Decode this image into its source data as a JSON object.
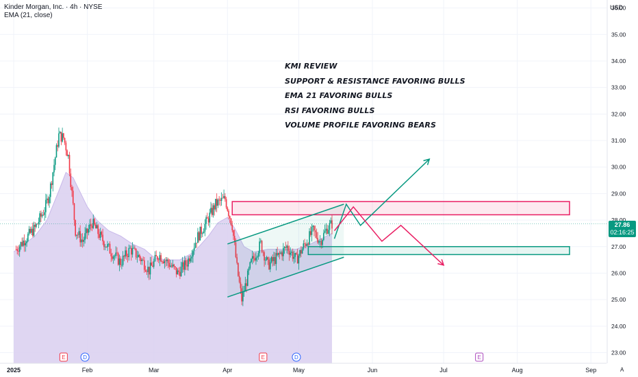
{
  "header": {
    "symbol": "Kinder Morgan, Inc. · 4h · NYSE",
    "indicator": "EMA (21, close)"
  },
  "currency": "USD",
  "last_price": "27.86",
  "countdown": "02:16:25",
  "corner_label": "A",
  "annotations": [
    "KMI REVIEW",
    "SUPPORT & RESISTANCE FAVORING BULLS",
    "EMA 21 FAVORING BULLS",
    "RSI FAVORING BULLS",
    "VOLUME PROFILE FAVORING BEARS"
  ],
  "colors": {
    "up": "#089981",
    "down": "#f23645",
    "ema_fill": "#d9cff0",
    "resistance": "#e91e63",
    "support": "#089981",
    "grid": "#f0f3fa"
  },
  "chart_data": {
    "type": "candlestick",
    "ylim": [
      22.6,
      36.3
    ],
    "yticks": [
      "23.00",
      "24.00",
      "25.00",
      "26.00",
      "27.00",
      "28.00",
      "29.00",
      "30.00",
      "31.00",
      "32.00",
      "33.00",
      "34.00",
      "35.00",
      "36.00"
    ],
    "x_ticks": [
      "2025",
      "Feb",
      "Mar",
      "Apr",
      "May",
      "Jun",
      "Jul",
      "Aug",
      "Sep"
    ],
    "events": [
      {
        "label": "E",
        "date": "Jan 22",
        "type": "earnings"
      },
      {
        "label": "D",
        "date": "Jan 31",
        "type": "dividend"
      },
      {
        "label": "E",
        "date": "Apr 16",
        "type": "earnings"
      },
      {
        "label": "D",
        "date": "Apr 30",
        "type": "dividend"
      },
      {
        "label": "E",
        "date": "Jul 16",
        "type": "earnings"
      }
    ],
    "price_path": [
      {
        "date": "Jan 2",
        "price": 26.9
      },
      {
        "date": "Jan 6",
        "price": 27.3
      },
      {
        "date": "Jan 10",
        "price": 27.7
      },
      {
        "date": "Jan 14",
        "price": 28.4
      },
      {
        "date": "Jan 16",
        "price": 29.0
      },
      {
        "date": "Jan 18",
        "price": 30.1
      },
      {
        "date": "Jan 20",
        "price": 31.2
      },
      {
        "date": "Jan 22",
        "price": 31.1
      },
      {
        "date": "Jan 24",
        "price": 30.4
      },
      {
        "date": "Jan 27",
        "price": 27.6
      },
      {
        "date": "Jan 30",
        "price": 27.2
      },
      {
        "date": "Feb 3",
        "price": 27.9
      },
      {
        "date": "Feb 7",
        "price": 27.3
      },
      {
        "date": "Feb 11",
        "price": 26.8
      },
      {
        "date": "Feb 15",
        "price": 26.4
      },
      {
        "date": "Feb 19",
        "price": 26.9
      },
      {
        "date": "Feb 23",
        "price": 26.6
      },
      {
        "date": "Feb 27",
        "price": 26.1
      },
      {
        "date": "Mar 3",
        "price": 26.7
      },
      {
        "date": "Mar 7",
        "price": 26.4
      },
      {
        "date": "Mar 11",
        "price": 26.0
      },
      {
        "date": "Mar 15",
        "price": 26.4
      },
      {
        "date": "Mar 19",
        "price": 27.3
      },
      {
        "date": "Mar 23",
        "price": 27.9
      },
      {
        "date": "Mar 27",
        "price": 28.6
      },
      {
        "date": "Mar 31",
        "price": 28.8
      },
      {
        "date": "Apr 3",
        "price": 27.8
      },
      {
        "date": "Apr 5",
        "price": 26.2
      },
      {
        "date": "Apr 7",
        "price": 25.0
      },
      {
        "date": "Apr 9",
        "price": 25.7
      },
      {
        "date": "Apr 11",
        "price": 26.4
      },
      {
        "date": "Apr 15",
        "price": 27.1
      },
      {
        "date": "Apr 18",
        "price": 26.3
      },
      {
        "date": "Apr 22",
        "price": 26.6
      },
      {
        "date": "Apr 26",
        "price": 27.0
      },
      {
        "date": "Apr 30",
        "price": 26.5
      },
      {
        "date": "May 3",
        "price": 27.0
      },
      {
        "date": "May 7",
        "price": 27.6
      },
      {
        "date": "May 10",
        "price": 27.2
      },
      {
        "date": "May 13",
        "price": 27.7
      },
      {
        "date": "May 15",
        "price": 27.86
      }
    ],
    "ema_21": [
      {
        "date": "Jan 1",
        "price": 26.8
      },
      {
        "date": "Jan 10",
        "price": 27.4
      },
      {
        "date": "Jan 15",
        "price": 28.0
      },
      {
        "date": "Jan 20",
        "price": 29.1
      },
      {
        "date": "Jan 23",
        "price": 29.8
      },
      {
        "date": "Jan 26",
        "price": 29.6
      },
      {
        "date": "Feb 1",
        "price": 28.5
      },
      {
        "date": "Feb 5",
        "price": 28.0
      },
      {
        "date": "Feb 10",
        "price": 27.6
      },
      {
        "date": "Feb 15",
        "price": 27.4
      },
      {
        "date": "Feb 20",
        "price": 27.1
      },
      {
        "date": "Feb 25",
        "price": 26.9
      },
      {
        "date": "Mar 1",
        "price": 26.6
      },
      {
        "date": "Mar 6",
        "price": 26.5
      },
      {
        "date": "Mar 12",
        "price": 26.5
      },
      {
        "date": "Mar 18",
        "price": 26.8
      },
      {
        "date": "Mar 24",
        "price": 27.4
      },
      {
        "date": "Mar 28",
        "price": 27.9
      },
      {
        "date": "Apr 1",
        "price": 28.1
      },
      {
        "date": "Apr 4",
        "price": 27.7
      },
      {
        "date": "Apr 8",
        "price": 27.0
      },
      {
        "date": "Apr 12",
        "price": 26.8
      },
      {
        "date": "Apr 18",
        "price": 26.9
      },
      {
        "date": "Apr 24",
        "price": 26.9
      },
      {
        "date": "Apr 30",
        "price": 26.9
      },
      {
        "date": "May 6",
        "price": 27.1
      },
      {
        "date": "May 15",
        "price": 27.5
      }
    ],
    "resistance_zone": {
      "start": "Apr 3",
      "end": "Aug 23",
      "low": 28.2,
      "high": 28.7
    },
    "support_zone": {
      "start": "May 5",
      "end": "Aug 23",
      "low": 26.7,
      "high": 27.0
    },
    "channel": {
      "upper": [
        {
          "date": "Apr 1",
          "price": 27.1
        },
        {
          "date": "May 20",
          "price": 28.6
        }
      ],
      "lower": [
        {
          "date": "Apr 1",
          "price": 25.1
        },
        {
          "date": "May 20",
          "price": 26.6
        }
      ]
    },
    "bull_path": [
      {
        "date": "May 16",
        "price": 27.3
      },
      {
        "date": "May 21",
        "price": 28.6
      },
      {
        "date": "May 27",
        "price": 27.8
      },
      {
        "date": "Jun 25",
        "price": 30.3
      }
    ],
    "bear_path": [
      {
        "date": "May 16",
        "price": 27.6
      },
      {
        "date": "May 24",
        "price": 28.5
      },
      {
        "date": "Jun 5",
        "price": 27.2
      },
      {
        "date": "Jun 13",
        "price": 27.8
      },
      {
        "date": "Jul 1",
        "price": 26.3
      }
    ]
  }
}
